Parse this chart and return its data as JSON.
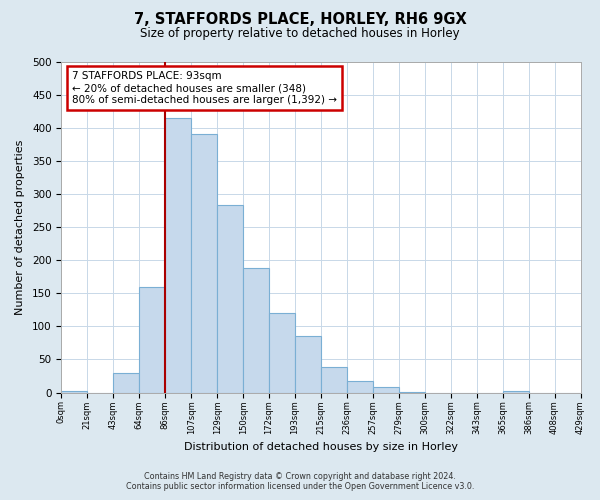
{
  "title": "7, STAFFORDS PLACE, HORLEY, RH6 9GX",
  "subtitle": "Size of property relative to detached houses in Horley",
  "xlabel": "Distribution of detached houses by size in Horley",
  "ylabel": "Number of detached properties",
  "bin_labels": [
    "0sqm",
    "21sqm",
    "43sqm",
    "64sqm",
    "86sqm",
    "107sqm",
    "129sqm",
    "150sqm",
    "172sqm",
    "193sqm",
    "215sqm",
    "236sqm",
    "257sqm",
    "279sqm",
    "300sqm",
    "322sqm",
    "343sqm",
    "365sqm",
    "386sqm",
    "408sqm",
    "429sqm"
  ],
  "bar_values": [
    2,
    0,
    30,
    160,
    415,
    390,
    283,
    188,
    120,
    85,
    38,
    17,
    9,
    1,
    0,
    0,
    0,
    2,
    0,
    0
  ],
  "bar_color": "#c6d9ec",
  "bar_edge_color": "#7aafd4",
  "vline_x_index": 4,
  "vline_color": "#aa0000",
  "annotation_title": "7 STAFFORDS PLACE: 93sqm",
  "annotation_line1": "← 20% of detached houses are smaller (348)",
  "annotation_line2": "80% of semi-detached houses are larger (1,392) →",
  "annotation_box_color": "#ffffff",
  "annotation_box_edge": "#cc0000",
  "ylim": [
    0,
    500
  ],
  "yticks": [
    0,
    50,
    100,
    150,
    200,
    250,
    300,
    350,
    400,
    450,
    500
  ],
  "footer_line1": "Contains HM Land Registry data © Crown copyright and database right 2024.",
  "footer_line2": "Contains public sector information licensed under the Open Government Licence v3.0.",
  "bg_color": "#dce8f0",
  "plot_bg_color": "#ffffff",
  "grid_color": "#c8d8e8"
}
